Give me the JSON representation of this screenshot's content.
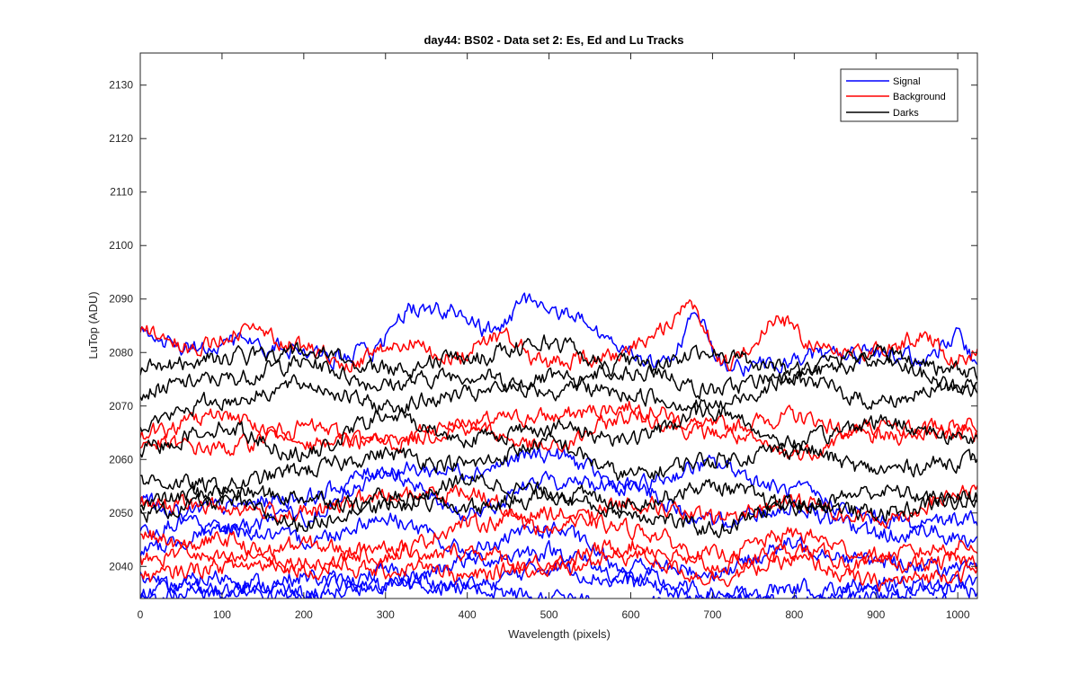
{
  "chart_data": {
    "type": "line",
    "title": "day44: BS02 - Data set 2: Es, Ed and Lu Tracks",
    "xlabel": "Wavelength (pixels)",
    "ylabel": "LuTop (ADU)",
    "xlim": [
      0,
      1024
    ],
    "ylim": [
      2034,
      2136
    ],
    "xticks": [
      0,
      100,
      200,
      300,
      400,
      500,
      600,
      700,
      800,
      900,
      1000
    ],
    "yticks": [
      2040,
      2050,
      2060,
      2070,
      2080,
      2090,
      2100,
      2110,
      2120,
      2130
    ],
    "grid": false,
    "legend_position": "top-right",
    "legend": [
      {
        "label": "Signal",
        "color": "#0000ff"
      },
      {
        "label": "Background",
        "color": "#ff0000"
      },
      {
        "label": "Darks",
        "color": "#000000"
      }
    ],
    "noise_amplitude_adu": 1.3,
    "series": [
      {
        "group": "Signal",
        "color": "#0000ff",
        "x": [
          0,
          60,
          120,
          170,
          220,
          280,
          330,
          380,
          430,
          480,
          530,
          580,
          640,
          680,
          720,
          780,
          840,
          900,
          960,
          1000,
          1024
        ],
        "y": [
          2083,
          2081,
          2082,
          2081,
          2079,
          2080,
          2088,
          2088,
          2084,
          2090,
          2087,
          2081,
          2078,
          2086,
          2077,
          2078,
          2080,
          2080,
          2079,
          2083,
          2078
        ]
      },
      {
        "group": "Signal",
        "color": "#0000ff",
        "x": [
          0,
          100,
          200,
          300,
          400,
          500,
          600,
          700,
          800,
          900,
          1024
        ],
        "y": [
          2052,
          2047,
          2049,
          2057,
          2050,
          2056,
          2055,
          2048,
          2051,
          2046,
          2049
        ]
      },
      {
        "group": "Signal",
        "color": "#0000ff",
        "x": [
          0,
          100,
          200,
          300,
          400,
          500,
          600,
          700,
          800,
          900,
          1024
        ],
        "y": [
          2047,
          2051,
          2053,
          2058,
          2058,
          2061,
          2055,
          2059,
          2054,
          2049,
          2045
        ]
      },
      {
        "group": "Signal",
        "color": "#0000ff",
        "x": [
          0,
          100,
          200,
          300,
          400,
          500,
          600,
          700,
          800,
          900,
          1024
        ],
        "y": [
          2043,
          2047,
          2045,
          2049,
          2043,
          2047,
          2040,
          2039,
          2044,
          2041,
          2039
        ]
      },
      {
        "group": "Signal",
        "color": "#0000ff",
        "x": [
          0,
          100,
          200,
          300,
          400,
          500,
          600,
          700,
          800,
          900,
          1024
        ],
        "y": [
          2038,
          2035,
          2038,
          2036,
          2041,
          2043,
          2038,
          2035,
          2033,
          2037,
          2036
        ]
      },
      {
        "group": "Signal",
        "color": "#0000ff",
        "x": [
          0,
          100,
          200,
          300,
          400,
          500,
          600,
          700,
          800,
          900,
          1024
        ],
        "y": [
          2035,
          2038,
          2035,
          2039,
          2036,
          2040,
          2037,
          2033,
          2036,
          2035,
          2037
        ]
      },
      {
        "group": "Signal",
        "color": "#0000ff",
        "x": [
          0,
          100,
          200,
          300,
          400,
          500,
          600,
          700,
          800,
          900,
          1024
        ],
        "y": [
          2034,
          2036,
          2034,
          2037,
          2036,
          2034,
          2032,
          2034,
          2032,
          2034,
          2033
        ]
      },
      {
        "group": "Background",
        "color": "#ff0000",
        "x": [
          0,
          60,
          130,
          200,
          260,
          320,
          380,
          440,
          500,
          560,
          620,
          670,
          720,
          780,
          840,
          900,
          960,
          1000,
          1024
        ],
        "y": [
          2085,
          2081,
          2084,
          2081,
          2078,
          2082,
          2079,
          2083,
          2078,
          2079,
          2082,
          2089,
          2078,
          2086,
          2080,
          2080,
          2083,
          2079,
          2080
        ]
      },
      {
        "group": "Background",
        "color": "#ff0000",
        "x": [
          0,
          100,
          200,
          300,
          400,
          500,
          600,
          700,
          800,
          900,
          1024
        ],
        "y": [
          2065,
          2068,
          2063,
          2064,
          2067,
          2068,
          2070,
          2066,
          2068,
          2064,
          2067
        ]
      },
      {
        "group": "Background",
        "color": "#ff0000",
        "x": [
          0,
          100,
          200,
          300,
          400,
          500,
          600,
          700,
          800,
          900,
          1024
        ],
        "y": [
          2063,
          2062,
          2066,
          2063,
          2066,
          2062,
          2068,
          2065,
          2061,
          2066,
          2065
        ]
      },
      {
        "group": "Background",
        "color": "#ff0000",
        "x": [
          0,
          100,
          200,
          300,
          400,
          500,
          600,
          700,
          800,
          900,
          1024
        ],
        "y": [
          2052,
          2051,
          2050,
          2053,
          2054,
          2047,
          2052,
          2049,
          2052,
          2049,
          2054
        ]
      },
      {
        "group": "Background",
        "color": "#ff0000",
        "x": [
          0,
          100,
          200,
          300,
          400,
          500,
          600,
          700,
          800,
          900,
          1024
        ],
        "y": [
          2046,
          2041,
          2044,
          2042,
          2048,
          2050,
          2047,
          2042,
          2046,
          2042,
          2044
        ]
      },
      {
        "group": "Background",
        "color": "#ff0000",
        "x": [
          0,
          100,
          200,
          300,
          400,
          500,
          600,
          700,
          800,
          900,
          1024
        ],
        "y": [
          2041,
          2045,
          2039,
          2044,
          2038,
          2041,
          2044,
          2040,
          2043,
          2040,
          2041
        ]
      },
      {
        "group": "Background",
        "color": "#ff0000",
        "x": [
          0,
          100,
          200,
          300,
          400,
          500,
          600,
          700,
          800,
          900,
          1024
        ],
        "y": [
          2038,
          2040,
          2041,
          2039,
          2043,
          2039,
          2042,
          2038,
          2041,
          2037,
          2039
        ]
      },
      {
        "group": "Darks",
        "color": "#000000",
        "x": [
          0,
          100,
          200,
          300,
          400,
          500,
          600,
          700,
          800,
          900,
          1024
        ],
        "y": [
          2077,
          2079,
          2080,
          2077,
          2079,
          2082,
          2076,
          2080,
          2077,
          2080,
          2076
        ]
      },
      {
        "group": "Darks",
        "color": "#000000",
        "x": [
          0,
          100,
          200,
          300,
          400,
          500,
          600,
          700,
          800,
          900,
          1024
        ],
        "y": [
          2073,
          2075,
          2078,
          2074,
          2076,
          2073,
          2078,
          2073,
          2076,
          2078,
          2073
        ]
      },
      {
        "group": "Darks",
        "color": "#000000",
        "x": [
          0,
          100,
          200,
          300,
          400,
          500,
          600,
          700,
          800,
          900,
          1024
        ],
        "y": [
          2067,
          2071,
          2074,
          2070,
          2072,
          2075,
          2072,
          2070,
          2075,
          2071,
          2074
        ]
      },
      {
        "group": "Darks",
        "color": "#000000",
        "x": [
          0,
          100,
          200,
          300,
          400,
          500,
          600,
          700,
          800,
          900,
          1024
        ],
        "y": [
          2062,
          2066,
          2061,
          2068,
          2064,
          2066,
          2064,
          2069,
          2063,
          2067,
          2064
        ]
      },
      {
        "group": "Darks",
        "color": "#000000",
        "x": [
          0,
          100,
          200,
          300,
          400,
          500,
          600,
          700,
          800,
          900,
          1024
        ],
        "y": [
          2056,
          2055,
          2058,
          2061,
          2059,
          2063,
          2057,
          2060,
          2062,
          2058,
          2060
        ]
      },
      {
        "group": "Darks",
        "color": "#000000",
        "x": [
          0,
          100,
          200,
          300,
          400,
          500,
          600,
          700,
          800,
          900,
          1024
        ],
        "y": [
          2052,
          2054,
          2053,
          2051,
          2056,
          2054,
          2052,
          2055,
          2051,
          2054,
          2052
        ]
      },
      {
        "group": "Darks",
        "color": "#000000",
        "x": [
          0,
          100,
          200,
          300,
          400,
          500,
          600,
          700,
          800,
          900,
          1024
        ],
        "y": [
          2050,
          2052,
          2048,
          2053,
          2051,
          2053,
          2050,
          2047,
          2052,
          2050,
          2053
        ]
      }
    ]
  }
}
